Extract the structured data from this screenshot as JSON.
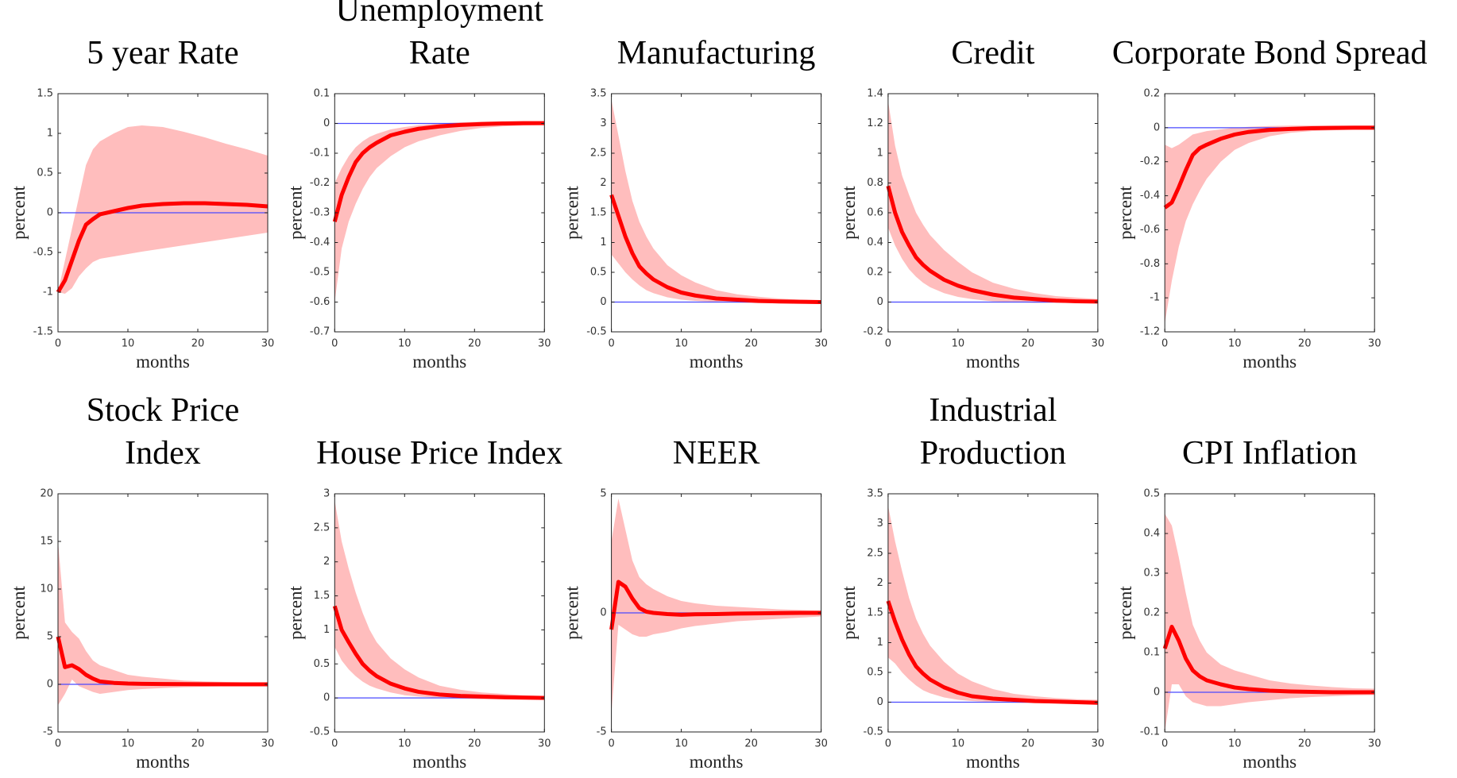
{
  "chart_data": [
    {
      "type": "line",
      "title": [
        "5 year Rate"
      ],
      "xlabel": "months",
      "ylabel": "percent",
      "x": [
        0,
        1,
        2,
        3,
        4,
        5,
        6,
        8,
        10,
        12,
        15,
        18,
        21,
        24,
        27,
        30
      ],
      "xlim": [
        0,
        30
      ],
      "xticks": [
        0,
        10,
        20,
        30
      ],
      "ylim": [
        -1.5,
        1.5
      ],
      "yticks": [
        -1.5,
        -1,
        -0.5,
        0,
        0.5,
        1,
        1.5
      ],
      "reference_line": 0,
      "reference_color": "#4a4aff",
      "series": [
        {
          "color": "#ff0000",
          "values": [
            -1,
            -0.85,
            -0.6,
            -0.35,
            -0.15,
            -0.08,
            -0.02,
            0.02,
            0.06,
            0.09,
            0.11,
            0.12,
            0.12,
            0.11,
            0.1,
            0.08
          ]
        }
      ],
      "band": {
        "color": "#ffbdbd",
        "lower": [
          -1,
          -1.02,
          -0.95,
          -0.8,
          -0.7,
          -0.62,
          -0.58,
          -0.55,
          -0.52,
          -0.49,
          -0.45,
          -0.41,
          -0.37,
          -0.33,
          -0.29,
          -0.25
        ],
        "upper": [
          -1,
          -0.6,
          -0.2,
          0.2,
          0.6,
          0.8,
          0.9,
          1.0,
          1.08,
          1.1,
          1.08,
          1.02,
          0.95,
          0.87,
          0.8,
          0.72
        ]
      }
    },
    {
      "type": "line",
      "title": [
        "Unemployment",
        "Rate"
      ],
      "xlabel": "months",
      "ylabel": "percent",
      "x": [
        0,
        1,
        2,
        3,
        4,
        5,
        6,
        8,
        10,
        12,
        15,
        18,
        21,
        24,
        27,
        30
      ],
      "xlim": [
        0,
        30
      ],
      "xticks": [
        0,
        10,
        20,
        30
      ],
      "ylim": [
        -0.7,
        0.1
      ],
      "yticks": [
        -0.7,
        -0.6,
        -0.5,
        -0.4,
        -0.3,
        -0.2,
        -0.1,
        0,
        0.1
      ],
      "reference_line": 0,
      "reference_color": "#4a4aff",
      "series": [
        {
          "color": "#ff0000",
          "values": [
            -0.33,
            -0.24,
            -0.18,
            -0.13,
            -0.1,
            -0.08,
            -0.065,
            -0.04,
            -0.028,
            -0.018,
            -0.01,
            -0.005,
            -0.002,
            0,
            0.001,
            0.001
          ]
        }
      ],
      "band": {
        "color": "#ffbdbd",
        "lower": [
          -0.6,
          -0.42,
          -0.33,
          -0.27,
          -0.22,
          -0.18,
          -0.15,
          -0.11,
          -0.08,
          -0.06,
          -0.04,
          -0.025,
          -0.015,
          -0.01,
          -0.007,
          -0.005
        ],
        "upper": [
          -0.2,
          -0.15,
          -0.11,
          -0.08,
          -0.06,
          -0.045,
          -0.035,
          -0.02,
          -0.012,
          -0.006,
          0,
          0.004,
          0.006,
          0.007,
          0.007,
          0.007
        ]
      }
    },
    {
      "type": "line",
      "title": [
        "Manufacturing"
      ],
      "xlabel": "months",
      "ylabel": "percent",
      "x": [
        0,
        1,
        2,
        3,
        4,
        5,
        6,
        8,
        10,
        12,
        15,
        18,
        21,
        24,
        27,
        30
      ],
      "xlim": [
        0,
        30
      ],
      "xticks": [
        0,
        10,
        20,
        30
      ],
      "ylim": [
        -0.5,
        3.5
      ],
      "yticks": [
        -0.5,
        0,
        0.5,
        1,
        1.5,
        2,
        2.5,
        3,
        3.5
      ],
      "reference_line": 0,
      "reference_color": "#4a4aff",
      "series": [
        {
          "color": "#ff0000",
          "values": [
            1.8,
            1.45,
            1.1,
            0.82,
            0.6,
            0.48,
            0.38,
            0.25,
            0.16,
            0.11,
            0.06,
            0.04,
            0.02,
            0.01,
            0.005,
            0
          ]
        }
      ],
      "band": {
        "color": "#ffbdbd",
        "lower": [
          0.8,
          0.65,
          0.5,
          0.38,
          0.28,
          0.2,
          0.15,
          0.08,
          0.04,
          0.02,
          0,
          -0.01,
          -0.02,
          -0.02,
          -0.02,
          -0.02
        ],
        "upper": [
          3.4,
          2.8,
          2.2,
          1.7,
          1.35,
          1.1,
          0.9,
          0.62,
          0.45,
          0.33,
          0.2,
          0.13,
          0.09,
          0.06,
          0.04,
          0.03
        ]
      }
    },
    {
      "type": "line",
      "title": [
        "Credit"
      ],
      "xlabel": "months",
      "ylabel": "percent",
      "x": [
        0,
        1,
        2,
        3,
        4,
        5,
        6,
        8,
        10,
        12,
        15,
        18,
        21,
        24,
        27,
        30
      ],
      "xlim": [
        0,
        30
      ],
      "xticks": [
        0,
        10,
        20,
        30
      ],
      "ylim": [
        -0.2,
        1.4
      ],
      "yticks": [
        -0.2,
        0,
        0.2,
        0.4,
        0.6,
        0.8,
        1,
        1.2,
        1.4
      ],
      "reference_line": 0,
      "reference_color": "#4a4aff",
      "series": [
        {
          "color": "#ff0000",
          "values": [
            0.78,
            0.6,
            0.47,
            0.38,
            0.3,
            0.25,
            0.21,
            0.15,
            0.11,
            0.08,
            0.05,
            0.03,
            0.02,
            0.01,
            0.005,
            0.003
          ]
        }
      ],
      "band": {
        "color": "#ffbdbd",
        "lower": [
          0.5,
          0.38,
          0.29,
          0.22,
          0.17,
          0.13,
          0.1,
          0.06,
          0.035,
          0.02,
          0.005,
          0,
          -0.005,
          -0.005,
          -0.005,
          -0.005
        ],
        "upper": [
          1.35,
          1.05,
          0.85,
          0.72,
          0.6,
          0.52,
          0.45,
          0.35,
          0.27,
          0.2,
          0.13,
          0.09,
          0.06,
          0.04,
          0.03,
          0.02
        ]
      }
    },
    {
      "type": "line",
      "title": [
        "Corporate Bond Spread"
      ],
      "xlabel": "months",
      "ylabel": "percent",
      "x": [
        0,
        1,
        2,
        3,
        4,
        5,
        6,
        8,
        10,
        12,
        15,
        18,
        21,
        24,
        27,
        30
      ],
      "xlim": [
        0,
        30
      ],
      "xticks": [
        0,
        10,
        20,
        30
      ],
      "ylim": [
        -1.2,
        0.2
      ],
      "yticks": [
        -1.2,
        -1,
        -0.8,
        -0.6,
        -0.4,
        -0.2,
        0,
        0.2
      ],
      "reference_line": 0,
      "reference_color": "#4a4aff",
      "series": [
        {
          "color": "#ff0000",
          "values": [
            -0.47,
            -0.44,
            -0.35,
            -0.25,
            -0.16,
            -0.12,
            -0.1,
            -0.065,
            -0.04,
            -0.025,
            -0.013,
            -0.007,
            -0.003,
            -0.001,
            0,
            0
          ]
        }
      ],
      "band": {
        "color": "#ffbdbd",
        "lower": [
          -1.15,
          -0.9,
          -0.7,
          -0.55,
          -0.45,
          -0.37,
          -0.3,
          -0.2,
          -0.13,
          -0.09,
          -0.05,
          -0.03,
          -0.02,
          -0.015,
          -0.012,
          -0.01
        ],
        "upper": [
          -0.1,
          -0.12,
          -0.1,
          -0.07,
          -0.04,
          -0.03,
          -0.02,
          -0.01,
          0,
          0.005,
          0.01,
          0.012,
          0.013,
          0.013,
          0.013,
          0.013
        ]
      }
    },
    {
      "type": "line",
      "title": [
        "Stock Price",
        "Index"
      ],
      "xlabel": "months",
      "ylabel": "percent",
      "x": [
        0,
        1,
        2,
        3,
        4,
        5,
        6,
        8,
        10,
        12,
        15,
        18,
        21,
        24,
        27,
        30
      ],
      "xlim": [
        0,
        30
      ],
      "xticks": [
        0,
        10,
        20,
        30
      ],
      "ylim": [
        -5,
        20
      ],
      "yticks": [
        -5,
        0,
        5,
        10,
        15,
        20
      ],
      "reference_line": 0,
      "reference_color": "#4a4aff",
      "series": [
        {
          "color": "#ff0000",
          "values": [
            5,
            1.8,
            2,
            1.6,
            1,
            0.6,
            0.3,
            0.15,
            0.08,
            0.05,
            0.03,
            0.02,
            0.01,
            0,
            0,
            0
          ]
        }
      ],
      "band": {
        "color": "#ffbdbd",
        "lower": [
          -2.2,
          -1,
          0.5,
          -0.2,
          -0.5,
          -0.8,
          -1,
          -0.8,
          -0.6,
          -0.5,
          -0.4,
          -0.3,
          -0.25,
          -0.2,
          -0.2,
          -0.2
        ],
        "upper": [
          15,
          6.5,
          5.5,
          4.8,
          3.5,
          2.5,
          2,
          1.5,
          1,
          0.8,
          0.6,
          0.4,
          0.3,
          0.25,
          0.2,
          0.2
        ]
      }
    },
    {
      "type": "line",
      "title": [
        "House Price Index"
      ],
      "xlabel": "months",
      "ylabel": "percent",
      "x": [
        0,
        1,
        2,
        3,
        4,
        5,
        6,
        8,
        10,
        12,
        15,
        18,
        21,
        24,
        27,
        30
      ],
      "xlim": [
        0,
        30
      ],
      "xticks": [
        0,
        10,
        20,
        30
      ],
      "ylim": [
        -0.5,
        3
      ],
      "yticks": [
        -0.5,
        0,
        0.5,
        1,
        1.5,
        2,
        2.5,
        3
      ],
      "reference_line": 0,
      "reference_color": "#4a4aff",
      "series": [
        {
          "color": "#ff0000",
          "values": [
            1.35,
            1,
            0.82,
            0.65,
            0.5,
            0.4,
            0.32,
            0.21,
            0.14,
            0.09,
            0.05,
            0.03,
            0.02,
            0.01,
            0.005,
            0
          ]
        }
      ],
      "band": {
        "color": "#ffbdbd",
        "lower": [
          0.75,
          0.55,
          0.42,
          0.32,
          0.24,
          0.18,
          0.14,
          0.08,
          0.04,
          0.02,
          0,
          -0.01,
          -0.02,
          -0.02,
          -0.02,
          -0.02
        ],
        "upper": [
          2.9,
          2.3,
          1.9,
          1.55,
          1.25,
          1.0,
          0.82,
          0.58,
          0.42,
          0.3,
          0.18,
          0.12,
          0.08,
          0.06,
          0.04,
          0.03
        ]
      }
    },
    {
      "type": "line",
      "title": [
        "NEER"
      ],
      "xlabel": "months",
      "ylabel": "percent",
      "x": [
        0,
        1,
        2,
        3,
        4,
        5,
        6,
        8,
        10,
        12,
        15,
        18,
        21,
        24,
        27,
        30
      ],
      "xlim": [
        0,
        30
      ],
      "xticks": [
        0,
        10,
        20,
        30
      ],
      "ylim": [
        -5,
        5
      ],
      "yticks": [
        -5,
        0,
        5
      ],
      "reference_line": 0,
      "reference_color": "#4a4aff",
      "series": [
        {
          "color": "#ff0000",
          "values": [
            -0.7,
            1.3,
            1.1,
            0.6,
            0.2,
            0.05,
            0,
            -0.05,
            -0.08,
            -0.06,
            -0.05,
            -0.03,
            -0.02,
            -0.01,
            0,
            0
          ]
        }
      ],
      "band": {
        "color": "#ffbdbd",
        "lower": [
          -4.2,
          -0.5,
          -0.7,
          -0.9,
          -1,
          -1,
          -0.9,
          -0.8,
          -0.65,
          -0.55,
          -0.45,
          -0.35,
          -0.3,
          -0.25,
          -0.2,
          -0.15
        ],
        "upper": [
          3,
          4.8,
          3.5,
          2.2,
          1.5,
          1.2,
          1,
          0.7,
          0.5,
          0.4,
          0.3,
          0.25,
          0.2,
          0.15,
          0.12,
          0.1
        ]
      }
    },
    {
      "type": "line",
      "title": [
        "Industrial",
        "Production"
      ],
      "xlabel": "months",
      "ylabel": "percent",
      "x": [
        0,
        1,
        2,
        3,
        4,
        5,
        6,
        8,
        10,
        12,
        15,
        18,
        21,
        24,
        27,
        30
      ],
      "xlim": [
        0,
        30
      ],
      "xticks": [
        0,
        10,
        20,
        30
      ],
      "ylim": [
        -0.5,
        3.5
      ],
      "yticks": [
        -0.5,
        0,
        0.5,
        1,
        1.5,
        2,
        2.5,
        3,
        3.5
      ],
      "reference_line": 0,
      "reference_color": "#4a4aff",
      "series": [
        {
          "color": "#ff0000",
          "values": [
            1.7,
            1.35,
            1.05,
            0.8,
            0.6,
            0.48,
            0.38,
            0.25,
            0.16,
            0.1,
            0.06,
            0.04,
            0.02,
            0.01,
            0,
            -0.01
          ]
        }
      ],
      "band": {
        "color": "#ffbdbd",
        "lower": [
          0.75,
          0.65,
          0.5,
          0.38,
          0.28,
          0.2,
          0.15,
          0.08,
          0.04,
          0.02,
          0,
          -0.01,
          -0.02,
          -0.02,
          -0.02,
          -0.02
        ],
        "upper": [
          3.3,
          2.7,
          2.2,
          1.75,
          1.4,
          1.15,
          0.95,
          0.68,
          0.48,
          0.35,
          0.22,
          0.14,
          0.1,
          0.07,
          0.05,
          0.04
        ]
      }
    },
    {
      "type": "line",
      "title": [
        "CPI Inflation"
      ],
      "xlabel": "months",
      "ylabel": "percent",
      "x": [
        0,
        1,
        2,
        3,
        4,
        5,
        6,
        8,
        10,
        12,
        15,
        18,
        21,
        24,
        27,
        30
      ],
      "xlim": [
        0,
        30
      ],
      "xticks": [
        0,
        10,
        20,
        30
      ],
      "ylim": [
        -0.1,
        0.5
      ],
      "yticks": [
        -0.1,
        0,
        0.1,
        0.2,
        0.3,
        0.4,
        0.5
      ],
      "reference_line": 0,
      "reference_color": "#4a4aff",
      "series": [
        {
          "color": "#ff0000",
          "values": [
            0.11,
            0.165,
            0.13,
            0.085,
            0.055,
            0.04,
            0.03,
            0.02,
            0.012,
            0.008,
            0.004,
            0.002,
            0.001,
            0,
            0,
            0
          ]
        }
      ],
      "band": {
        "color": "#ffbdbd",
        "lower": [
          -0.1,
          0.02,
          0.02,
          -0.01,
          -0.025,
          -0.03,
          -0.035,
          -0.035,
          -0.03,
          -0.025,
          -0.02,
          -0.015,
          -0.012,
          -0.01,
          -0.008,
          -0.007
        ],
        "upper": [
          0.45,
          0.42,
          0.34,
          0.25,
          0.17,
          0.13,
          0.1,
          0.07,
          0.055,
          0.045,
          0.03,
          0.022,
          0.017,
          0.013,
          0.01,
          0.009
        ]
      }
    }
  ]
}
